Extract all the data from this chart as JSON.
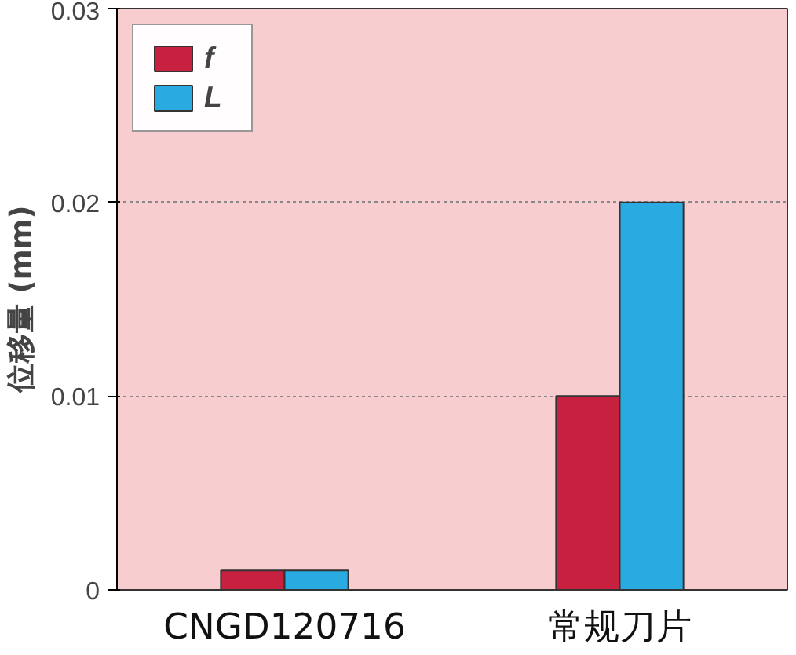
{
  "chart_data": {
    "type": "bar",
    "ylabel": "位移量 (mm)",
    "categories": [
      "CNGD120716",
      "常规刀片"
    ],
    "series": [
      {
        "name": "f",
        "color": "#c8203f",
        "values": [
          0.001,
          0.01
        ]
      },
      {
        "name": "L",
        "color": "#29aae1",
        "values": [
          0.001,
          0.02
        ]
      }
    ],
    "ylim": [
      0,
      0.03
    ],
    "yticks": [
      0,
      0.01,
      0.02,
      0.03
    ],
    "grid": "y",
    "legend": "top left"
  }
}
